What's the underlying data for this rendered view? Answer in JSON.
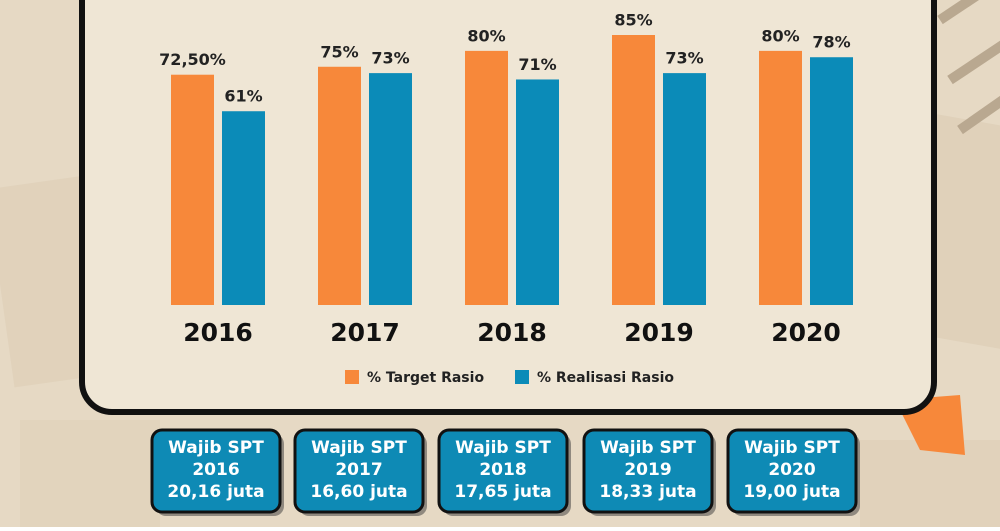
{
  "chart_data": {
    "type": "bar",
    "categories": [
      "2016",
      "2017",
      "2018",
      "2019",
      "2020"
    ],
    "series": [
      {
        "name": "% Target Rasio",
        "color": "#f7883a",
        "values": [
          72.5,
          75,
          80,
          85,
          80
        ],
        "value_labels": [
          "72,50%",
          "75%",
          "80%",
          "85%",
          "80%"
        ]
      },
      {
        "name": "% Realisasi Rasio",
        "color": "#0b8bb8",
        "values": [
          61,
          73,
          71,
          73,
          78
        ],
        "value_labels": [
          "61%",
          "73%",
          "71%",
          "73%",
          "78%"
        ]
      }
    ]
  },
  "cards": [
    {
      "label": "Wajib SPT",
      "year": "2016",
      "amount": "20,16 juta"
    },
    {
      "label": "Wajib SPT",
      "year": "2017",
      "amount": "16,60 juta"
    },
    {
      "label": "Wajib SPT",
      "year": "2018",
      "amount": "17,65 juta"
    },
    {
      "label": "Wajib SPT",
      "year": "2019",
      "amount": "18,33 juta"
    },
    {
      "label": "Wajib SPT",
      "year": "2020",
      "amount": "19,00 juta"
    }
  ]
}
